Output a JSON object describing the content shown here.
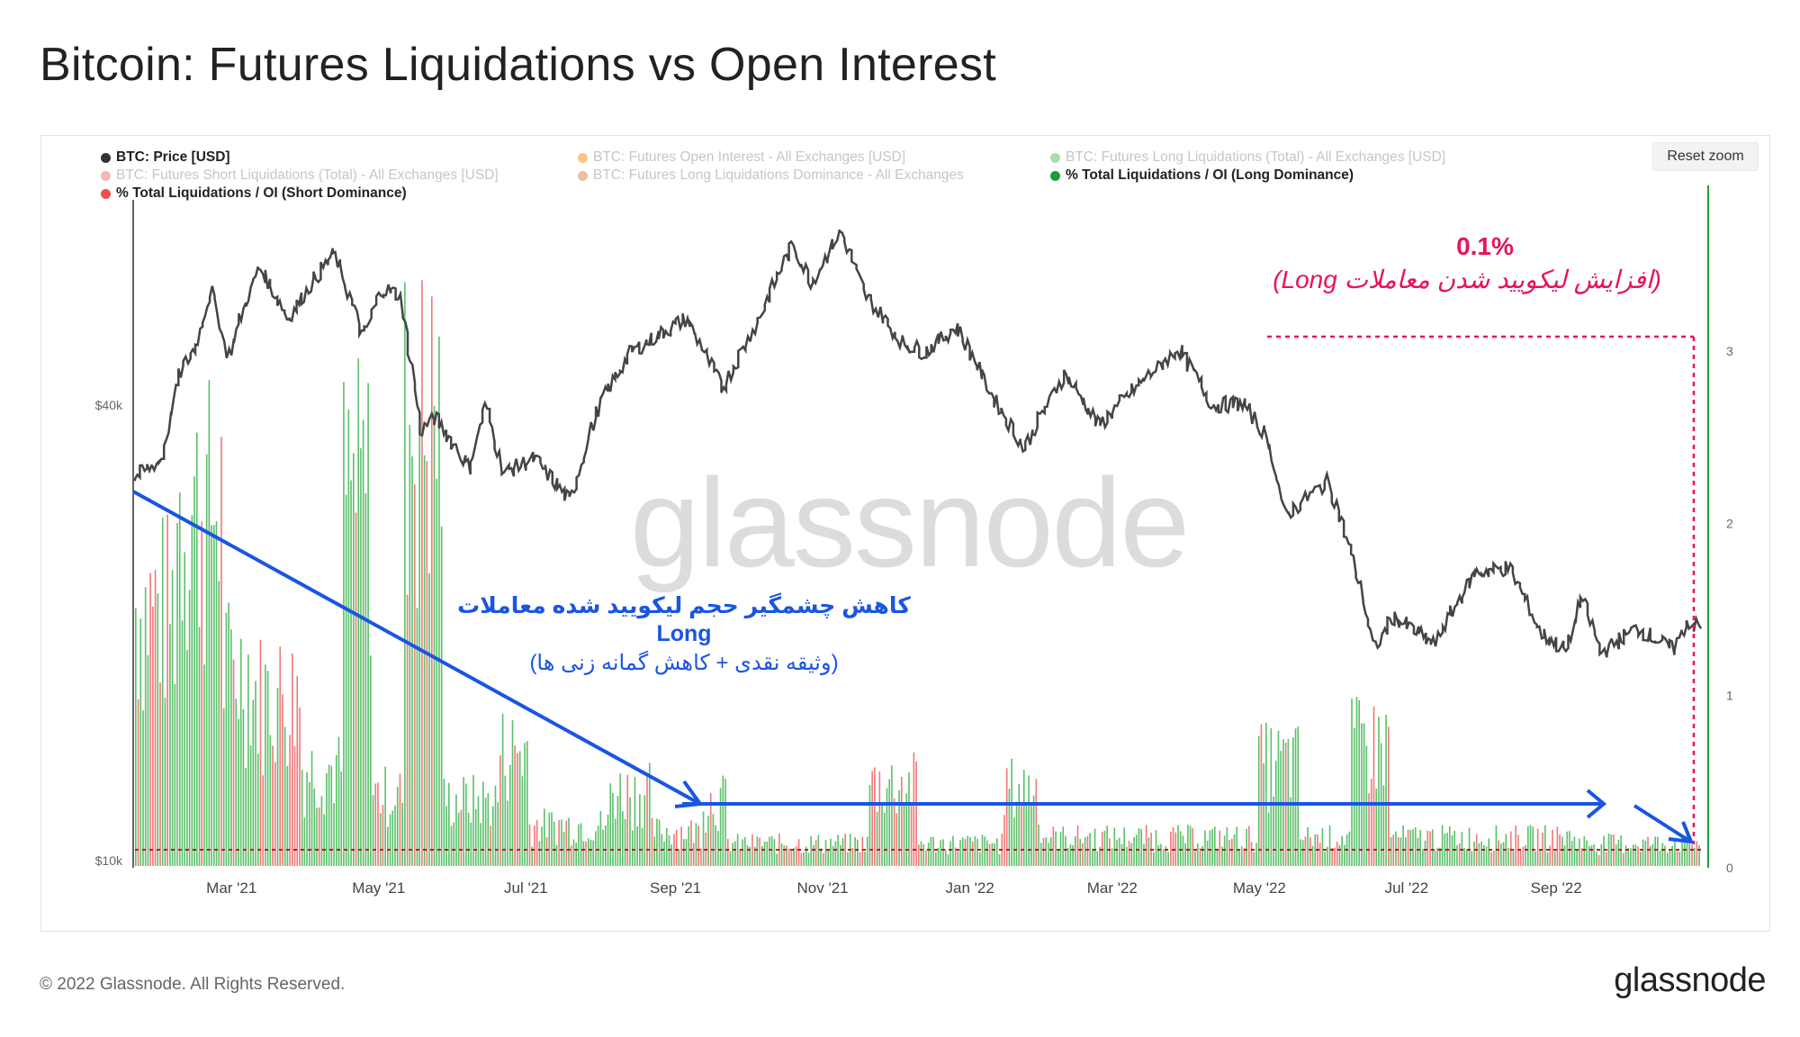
{
  "title": "Bitcoin: Futures Liquidations vs Open Interest",
  "reset_zoom": "Reset zoom",
  "watermark": "glassnode",
  "footer": {
    "copyright": "© 2022 Glassnode. All Rights Reserved.",
    "logo": "glassnode"
  },
  "legend": [
    {
      "label": "BTC: Price [USD]",
      "color": "#333333",
      "active": true
    },
    {
      "label": "BTC: Futures Open Interest - All Exchanges [USD]",
      "color": "#f7931a",
      "active": false
    },
    {
      "label": "BTC: Futures Long Liquidations (Total) - All Exchanges [USD]",
      "color": "#5cc16b",
      "active": false
    },
    {
      "label": "BTC: Futures Short Liquidations (Total) - All Exchanges [USD]",
      "color": "#f07a7a",
      "active": false
    },
    {
      "label": "BTC: Futures Long Liquidations Dominance - All Exchanges",
      "color": "#e08a4a",
      "active": false
    },
    {
      "label": "% Total Liquidations / OI (Long Dominance)",
      "color": "#1a9e3a",
      "active": true
    },
    {
      "label": "% Total Liquidations / OI (Short Dominance)",
      "color": "#f05050",
      "active": true
    }
  ],
  "annotations": {
    "blue_line1": "کاهش چشمگیر حجم لیکویید شده معاملات",
    "blue_line2": "Long",
    "blue_line3": "(وثیقه نقدی + کاهش گمانه زنی ها)",
    "pink_value": "0.1%",
    "pink_text": "(افزایش لیکویید شدن معاملات Long)"
  },
  "chart_data": {
    "type": "bar",
    "x_tick_labels": [
      "Mar '21",
      "May '21",
      "Jul '21",
      "Sep '21",
      "Nov '21",
      "Jan '22",
      "Mar '22",
      "May '22",
      "Jul '22",
      "Sep '22"
    ],
    "y_left_ticks": [
      "$10k",
      "$40k"
    ],
    "y_right_ticks": [
      "0",
      "1",
      "2",
      "3"
    ],
    "y_right_range": [
      0,
      3.0
    ],
    "scale_left": "log",
    "price_series": {
      "name": "BTC: Price [USD]",
      "color": "#333333",
      "points": [
        [
          "2021-01-20",
          32000
        ],
        [
          "2021-02-01",
          34000
        ],
        [
          "2021-02-08",
          44000
        ],
        [
          "2021-02-15",
          48000
        ],
        [
          "2021-02-21",
          57000
        ],
        [
          "2021-02-28",
          46000
        ],
        [
          "2021-03-13",
          61000
        ],
        [
          "2021-03-25",
          52000
        ],
        [
          "2021-04-13",
          63500
        ],
        [
          "2021-04-25",
          49000
        ],
        [
          "2021-05-03",
          57000
        ],
        [
          "2021-05-10",
          56000
        ],
        [
          "2021-05-19",
          37000
        ],
        [
          "2021-05-25",
          38500
        ],
        [
          "2021-06-08",
          33000
        ],
        [
          "2021-06-15",
          40000
        ],
        [
          "2021-06-22",
          32500
        ],
        [
          "2021-07-05",
          34000
        ],
        [
          "2021-07-20",
          29800
        ],
        [
          "2021-08-01",
          40000
        ],
        [
          "2021-08-14",
          47000
        ],
        [
          "2021-09-06",
          52000
        ],
        [
          "2021-09-21",
          42000
        ],
        [
          "2021-10-05",
          51000
        ],
        [
          "2021-10-20",
          65000
        ],
        [
          "2021-10-28",
          58000
        ],
        [
          "2021-11-09",
          68000
        ],
        [
          "2021-11-19",
          56000
        ],
        [
          "2021-12-04",
          48500
        ],
        [
          "2021-12-14",
          47000
        ],
        [
          "2021-12-27",
          50800
        ],
        [
          "2022-01-10",
          41500
        ],
        [
          "2022-01-24",
          35000
        ],
        [
          "2022-02-10",
          44000
        ],
        [
          "2022-02-24",
          37500
        ],
        [
          "2022-03-09",
          41500
        ],
        [
          "2022-03-29",
          47500
        ],
        [
          "2022-04-12",
          40000
        ],
        [
          "2022-04-25",
          40200
        ],
        [
          "2022-05-05",
          36000
        ],
        [
          "2022-05-12",
          28500
        ],
        [
          "2022-05-30",
          31700
        ],
        [
          "2022-06-13",
          22500
        ],
        [
          "2022-06-18",
          19000
        ],
        [
          "2022-06-26",
          21000
        ],
        [
          "2022-07-13",
          19300
        ],
        [
          "2022-07-30",
          24000
        ],
        [
          "2022-08-13",
          24400
        ],
        [
          "2022-08-26",
          20000
        ],
        [
          "2022-09-06",
          18900
        ],
        [
          "2022-09-12",
          22300
        ],
        [
          "2022-09-20",
          18800
        ],
        [
          "2022-10-05",
          20300
        ],
        [
          "2022-10-20",
          19000
        ],
        [
          "2022-10-26",
          20700
        ],
        [
          "2022-10-31",
          20300
        ]
      ]
    },
    "liquidation_bars": {
      "name": "% Total Liquidations / OI",
      "long_color": "#5cc16b",
      "short_color": "#f07a7a",
      "segments": [
        [
          "2021-01-20",
          "2021-02-06",
          2.1,
          0.45
        ],
        [
          "2021-02-06",
          "2021-02-26",
          2.9,
          0.35
        ],
        [
          "2021-02-26",
          "2021-03-10",
          1.6,
          0.5
        ],
        [
          "2021-03-10",
          "2021-03-30",
          1.4,
          0.55
        ],
        [
          "2021-03-30",
          "2021-04-16",
          0.8,
          0.3
        ],
        [
          "2021-04-16",
          "2021-04-28",
          3.0,
          0.25
        ],
        [
          "2021-04-28",
          "2021-05-12",
          0.6,
          0.4
        ],
        [
          "2021-05-12",
          "2021-05-28",
          3.6,
          0.3
        ],
        [
          "2021-05-28",
          "2021-06-20",
          0.55,
          0.35
        ],
        [
          "2021-06-20",
          "2021-07-02",
          0.95,
          0.3
        ],
        [
          "2021-07-02",
          "2021-08-05",
          0.35,
          0.45
        ],
        [
          "2021-08-05",
          "2021-08-22",
          0.62,
          0.3
        ],
        [
          "2021-08-22",
          "2021-09-12",
          0.3,
          0.5
        ],
        [
          "2021-09-12",
          "2021-09-22",
          0.55,
          0.3
        ],
        [
          "2021-09-22",
          "2021-11-20",
          0.2,
          0.4
        ],
        [
          "2021-11-20",
          "2021-12-10",
          0.68,
          0.35
        ],
        [
          "2021-12-10",
          "2022-01-15",
          0.2,
          0.4
        ],
        [
          "2022-01-15",
          "2022-01-30",
          0.65,
          0.35
        ],
        [
          "2022-01-30",
          "2022-04-30",
          0.25,
          0.4
        ],
        [
          "2022-04-30",
          "2022-05-18",
          0.85,
          0.3
        ],
        [
          "2022-05-18",
          "2022-06-08",
          0.25,
          0.4
        ],
        [
          "2022-06-08",
          "2022-06-24",
          1.0,
          0.25
        ],
        [
          "2022-06-24",
          "2022-09-10",
          0.25,
          0.4
        ],
        [
          "2022-09-10",
          "2022-10-31",
          0.2,
          0.35
        ]
      ]
    }
  }
}
